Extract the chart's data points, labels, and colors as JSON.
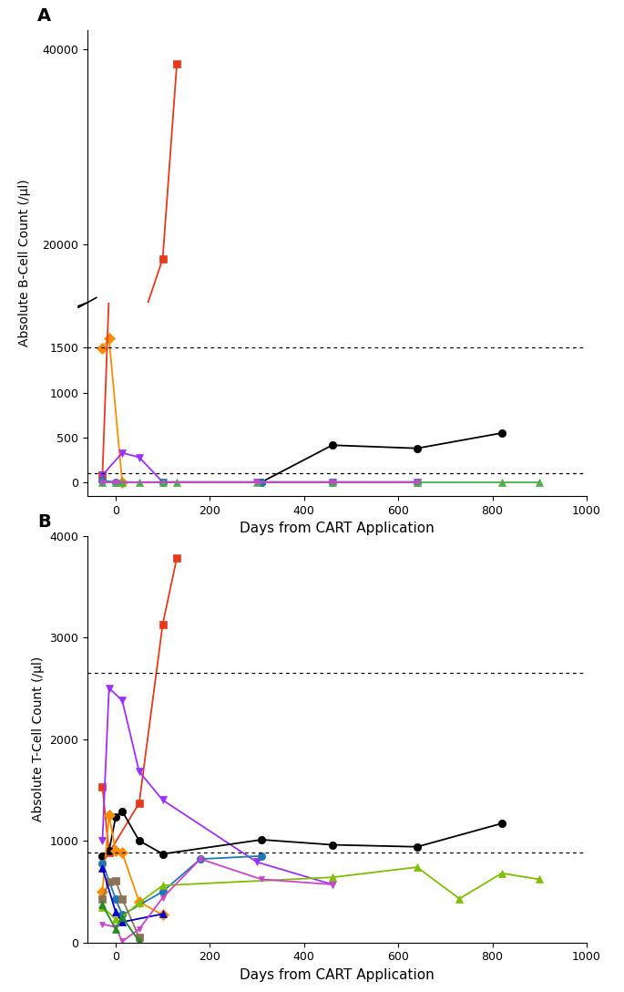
{
  "panel_A": {
    "title": "A",
    "ylabel": "Absolute B-Cell Count (/µl)",
    "xlabel": "Days from CART Application",
    "hlines": [
      1500,
      100
    ],
    "series": [
      {
        "name": "orange_diamond",
        "color": "#FF8C00",
        "marker": "D",
        "markersize": 6,
        "x": [
          -28,
          -14,
          14
        ],
        "y": [
          1490,
          1600,
          5
        ]
      },
      {
        "name": "red_square",
        "color": "#E8391D",
        "marker": "s",
        "markersize": 6,
        "x": [
          -28,
          100,
          130
        ],
        "y": [
          80,
          18500,
          38500
        ]
      },
      {
        "name": "purple_triangle_down",
        "color": "#9B30FF",
        "marker": "v",
        "markersize": 6,
        "x": [
          -28,
          14,
          50,
          100,
          300,
          460,
          640
        ],
        "y": [
          80,
          330,
          280,
          5,
          5,
          5,
          5
        ]
      },
      {
        "name": "black_circle",
        "color": "#000000",
        "marker": "o",
        "markersize": 6,
        "x": [
          310,
          460,
          640,
          820
        ],
        "y": [
          5,
          415,
          380,
          550
        ]
      },
      {
        "name": "blue_circle",
        "color": "#1F78B4",
        "marker": "o",
        "markersize": 6,
        "x": [
          -28,
          0,
          100,
          310,
          460,
          640
        ],
        "y": [
          20,
          5,
          5,
          5,
          5,
          5
        ]
      },
      {
        "name": "green_triangle_up",
        "color": "#4DAF4A",
        "marker": "^",
        "markersize": 6,
        "x": [
          -28,
          0,
          14,
          50,
          100,
          130,
          300,
          460,
          640,
          820,
          900
        ],
        "y": [
          5,
          5,
          5,
          5,
          5,
          5,
          5,
          5,
          5,
          5,
          5
        ]
      },
      {
        "name": "purple_small_tri_down",
        "color": "#CC44CC",
        "marker": "v",
        "markersize": 5,
        "x": [
          -28,
          0,
          300,
          460,
          640
        ],
        "y": [
          5,
          5,
          5,
          5,
          5
        ]
      }
    ]
  },
  "panel_B": {
    "title": "B",
    "ylabel": "Absolute T-Cell Count (/µl)",
    "xlabel": "Days from CART Application",
    "ylim": [
      0,
      4000
    ],
    "hlines": [
      2650,
      880
    ],
    "series": [
      {
        "name": "red_square",
        "color": "#E8391D",
        "marker": "s",
        "markersize": 6,
        "x": [
          -28,
          -14,
          50,
          100,
          130
        ],
        "y": [
          1530,
          880,
          1370,
          3130,
          3780
        ]
      },
      {
        "name": "purple_triangle_down",
        "color": "#9B30FF",
        "marker": "v",
        "markersize": 6,
        "x": [
          -28,
          -14,
          14,
          50,
          100,
          300,
          460
        ],
        "y": [
          1000,
          2500,
          2380,
          1680,
          1400,
          790,
          570
        ]
      },
      {
        "name": "black_circle",
        "color": "#000000",
        "marker": "o",
        "markersize": 6,
        "x": [
          -28,
          -14,
          0,
          14,
          50,
          100,
          310,
          460,
          640,
          820
        ],
        "y": [
          850,
          900,
          1230,
          1290,
          1000,
          870,
          1010,
          960,
          940,
          1170
        ]
      },
      {
        "name": "orange_diamond",
        "color": "#FF8C00",
        "marker": "D",
        "markersize": 6,
        "x": [
          -28,
          -14,
          0,
          14,
          50,
          100
        ],
        "y": [
          500,
          1250,
          900,
          880,
          400,
          270
        ]
      },
      {
        "name": "blue_circle",
        "color": "#1F78B4",
        "marker": "o",
        "markersize": 6,
        "x": [
          -28,
          0,
          14,
          100,
          180,
          310
        ],
        "y": [
          780,
          430,
          270,
          500,
          820,
          850
        ]
      },
      {
        "name": "green_triangle_up_light",
        "color": "#7FBF00",
        "marker": "^",
        "markersize": 6,
        "x": [
          -28,
          0,
          14,
          50,
          100,
          460,
          640,
          730,
          820,
          900
        ],
        "y": [
          350,
          230,
          250,
          390,
          560,
          640,
          740,
          430,
          680,
          620
        ]
      },
      {
        "name": "dark_olive_square",
        "color": "#8B7355",
        "marker": "s",
        "markersize": 6,
        "x": [
          -28,
          -14,
          0,
          14,
          50
        ],
        "y": [
          430,
          600,
          610,
          430,
          50
        ]
      },
      {
        "name": "blue_triangle_up",
        "color": "#0000CD",
        "marker": "^",
        "markersize": 6,
        "x": [
          -28,
          0,
          14,
          100
        ],
        "y": [
          730,
          300,
          200,
          280
        ]
      },
      {
        "name": "purple_small_v",
        "color": "#CC44CC",
        "marker": "v",
        "markersize": 5,
        "x": [
          -28,
          0,
          14,
          50,
          100,
          180,
          310,
          460
        ],
        "y": [
          180,
          150,
          10,
          130,
          440,
          820,
          620,
          570
        ]
      },
      {
        "name": "green_tri_dark",
        "color": "#228B22",
        "marker": "^",
        "markersize": 6,
        "x": [
          -28,
          0,
          14,
          50
        ],
        "y": [
          370,
          130,
          250,
          10
        ]
      }
    ]
  }
}
